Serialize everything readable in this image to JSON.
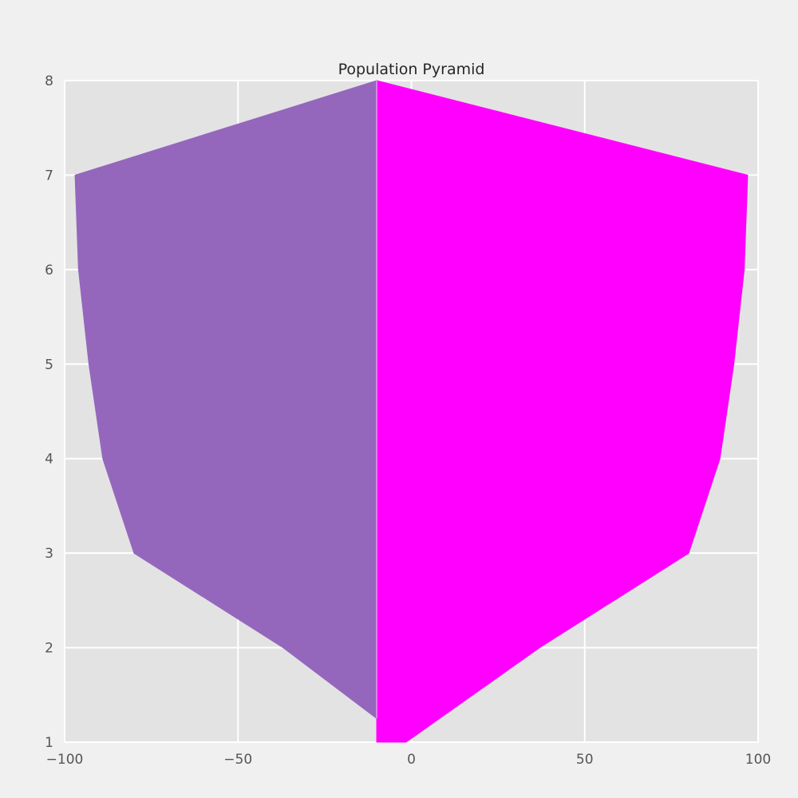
{
  "chart_data": {
    "type": "area",
    "title": "Population Pyramid",
    "xlabel": "",
    "ylabel": "",
    "xlim": [
      -100,
      100
    ],
    "ylim": [
      1,
      8
    ],
    "xticks": [
      -100,
      -50,
      0,
      50,
      100
    ],
    "xtick_labels": [
      "−100",
      "−50",
      "0",
      "50",
      "100"
    ],
    "yticks": [
      1,
      2,
      3,
      4,
      5,
      6,
      7,
      8
    ],
    "ytick_labels": [
      "1",
      "2",
      "3",
      "4",
      "5",
      "6",
      "7",
      "8"
    ],
    "grid": true,
    "baseline_x": -10,
    "series": [
      {
        "side": "left",
        "color": "#9467bd",
        "points": [
          {
            "y": 1.25,
            "x": -10
          },
          {
            "y": 2,
            "x": -37
          },
          {
            "y": 3,
            "x": -80
          },
          {
            "y": 4,
            "x": -89
          },
          {
            "y": 5,
            "x": -93
          },
          {
            "y": 6,
            "x": -96
          },
          {
            "y": 7,
            "x": -97
          },
          {
            "y": 8,
            "x": -10
          }
        ]
      },
      {
        "side": "right",
        "color": "#ff00ff",
        "points": [
          {
            "y": 1,
            "x": -1.5
          },
          {
            "y": 2,
            "x": 37
          },
          {
            "y": 3,
            "x": 80
          },
          {
            "y": 4,
            "x": 89
          },
          {
            "y": 5,
            "x": 93
          },
          {
            "y": 6,
            "x": 96
          },
          {
            "y": 7,
            "x": 97
          },
          {
            "y": 8,
            "x": -10
          }
        ]
      }
    ]
  }
}
